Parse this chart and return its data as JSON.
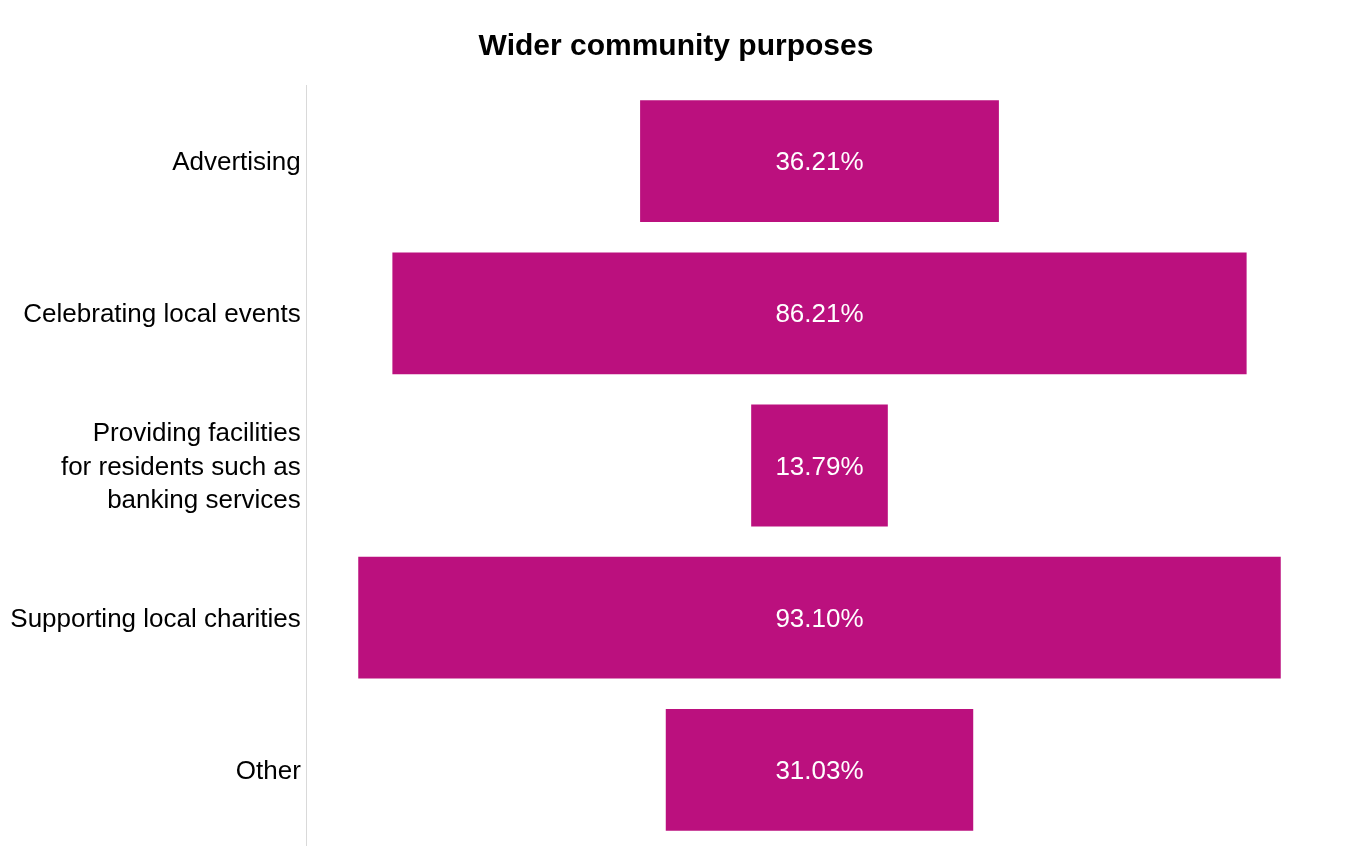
{
  "chart_data": {
    "type": "other",
    "title": "Wider community purposes",
    "categories": [
      "Advertising",
      "Celebrating local events",
      "Providing facilities\nfor residents such as\nbanking services",
      "Supporting local charities",
      "Other"
    ],
    "values": [
      36.21,
      86.21,
      13.79,
      93.1,
      31.03
    ],
    "value_labels": [
      "36.21%",
      "86.21%",
      "13.79%",
      "93.10%",
      "31.03%"
    ],
    "color": "#bb107e"
  }
}
